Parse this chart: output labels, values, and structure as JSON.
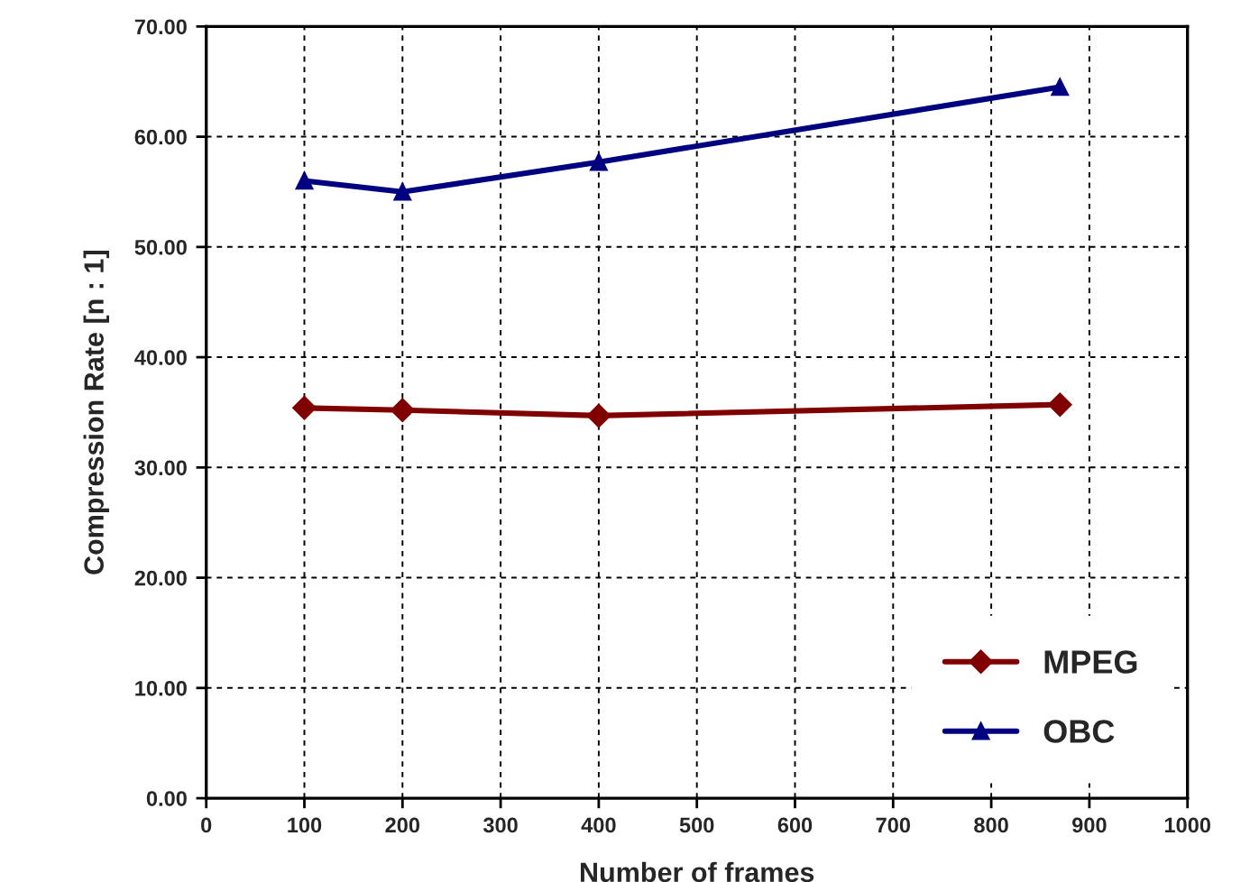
{
  "chart_data": {
    "type": "line",
    "xlabel": "Number of frames",
    "ylabel": "Compression Rate [n : 1]",
    "xlim": [
      0,
      1000
    ],
    "xticks": [
      0,
      100,
      200,
      300,
      400,
      500,
      600,
      700,
      800,
      900,
      1000
    ],
    "ylim": [
      0,
      70
    ],
    "yticks": [
      {
        "value": 0,
        "label": "0.00"
      },
      {
        "value": 10,
        "label": "10.00"
      },
      {
        "value": 20,
        "label": "20.00"
      },
      {
        "value": 30,
        "label": "30.00"
      },
      {
        "value": 40,
        "label": "40.00"
      },
      {
        "value": 50,
        "label": "50.00"
      },
      {
        "value": 60,
        "label": "60.00"
      },
      {
        "value": 70,
        "label": "70.00"
      }
    ],
    "grid": true,
    "legend": "bottom right",
    "line_style": "solid",
    "x": [
      100,
      200,
      400,
      870
    ],
    "series": [
      {
        "name": "MPEG",
        "color": "#800000",
        "marker": "diamond",
        "values": [
          35.4,
          35.2,
          34.7,
          35.7
        ]
      },
      {
        "name": "OBC",
        "color": "#000080",
        "marker": "triangle",
        "values": [
          56.0,
          55.0,
          57.7,
          64.5
        ]
      }
    ]
  }
}
